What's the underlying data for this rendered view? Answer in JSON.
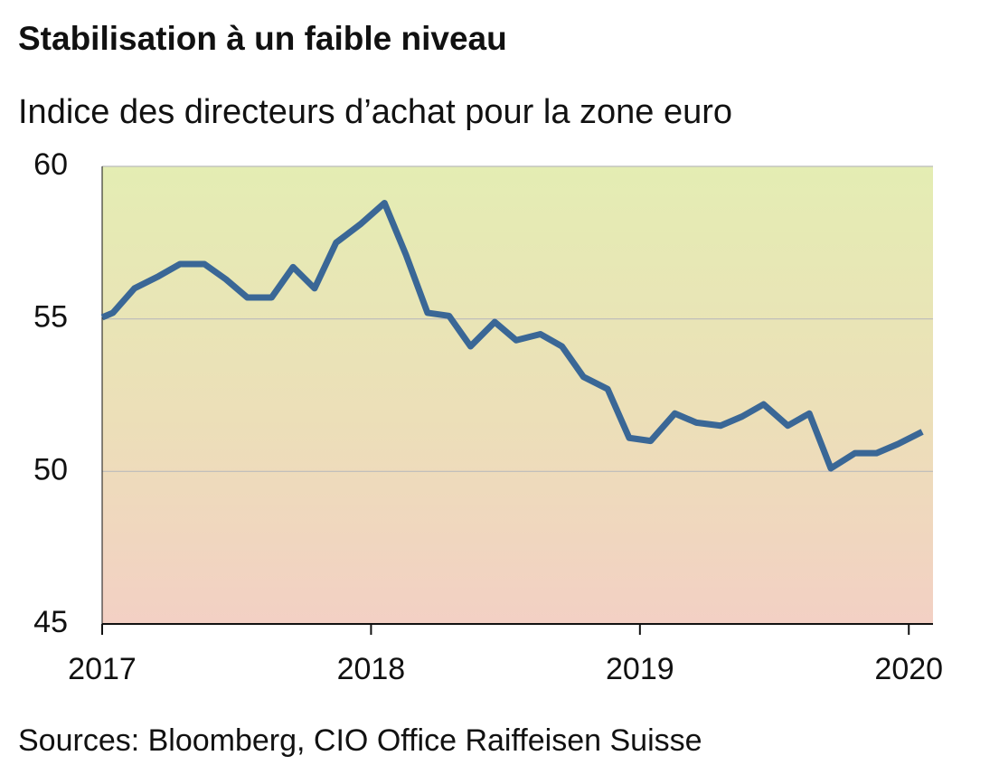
{
  "chart_data": {
    "type": "line",
    "title": "Stabilisation à un faible niveau",
    "subtitle": "Indice des directeurs d’achat pour la zone euro",
    "source": "Sources: Bloomberg, CIO Office Raiffeisen Suisse",
    "x": [
      2017.0,
      2017.04,
      2017.12,
      2017.21,
      2017.29,
      2017.38,
      2017.46,
      2017.54,
      2017.63,
      2017.71,
      2017.79,
      2017.87,
      2017.96,
      2018.05,
      2018.13,
      2018.21,
      2018.29,
      2018.37,
      2018.46,
      2018.54,
      2018.63,
      2018.71,
      2018.79,
      2018.88,
      2018.96,
      2019.04,
      2019.13,
      2019.21,
      2019.3,
      2019.38,
      2019.46,
      2019.55,
      2019.63,
      2019.71,
      2019.8,
      2019.88,
      2019.96,
      2020.05
    ],
    "series": [
      {
        "color": "#3a6796",
        "values": [
          55.05,
          55.2,
          56.0,
          56.4,
          56.8,
          56.8,
          56.3,
          55.7,
          55.7,
          56.7,
          56.0,
          57.5,
          58.1,
          58.8,
          57.1,
          55.2,
          55.1,
          54.1,
          54.9,
          54.3,
          54.5,
          54.1,
          53.1,
          52.7,
          51.1,
          51.0,
          51.9,
          51.6,
          51.5,
          51.8,
          52.2,
          51.5,
          51.9,
          50.1,
          50.6,
          50.6,
          50.9,
          51.3
        ]
      }
    ],
    "xlim": [
      2017,
      2020.09
    ],
    "xticks": [
      2017,
      2018,
      2019,
      2020
    ],
    "ylim": [
      45,
      60
    ],
    "yticks": [
      45,
      50,
      55,
      60
    ],
    "grid": true
  }
}
